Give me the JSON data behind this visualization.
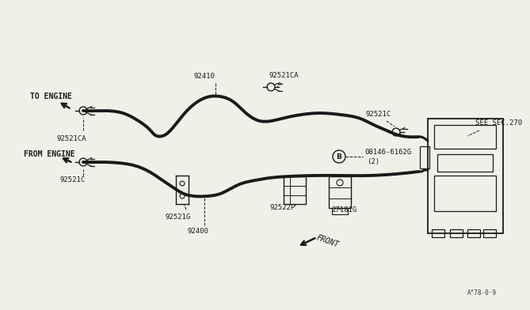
{
  "bg_color": "#f0efe8",
  "line_color": "#1a1a1a",
  "watermark": "A°78⋅0·9",
  "labels": {
    "to_engine": "TO ENGINE",
    "from_engine": "FROM ENGINE",
    "part_92410": "92410",
    "part_92521CA_top": "92521CA",
    "part_92521CA_left": "92521CA",
    "part_92521G": "92521G",
    "part_92521C_top": "92521C",
    "part_92521C_bot": "92521C",
    "part_08146": "08146-6162G",
    "part_08146b": "(2)",
    "part_92522P": "92522P",
    "part_27181G": "27181G",
    "see_sec": "SEE SEC.270",
    "front": "FRONT",
    "part_92400": "92400"
  }
}
